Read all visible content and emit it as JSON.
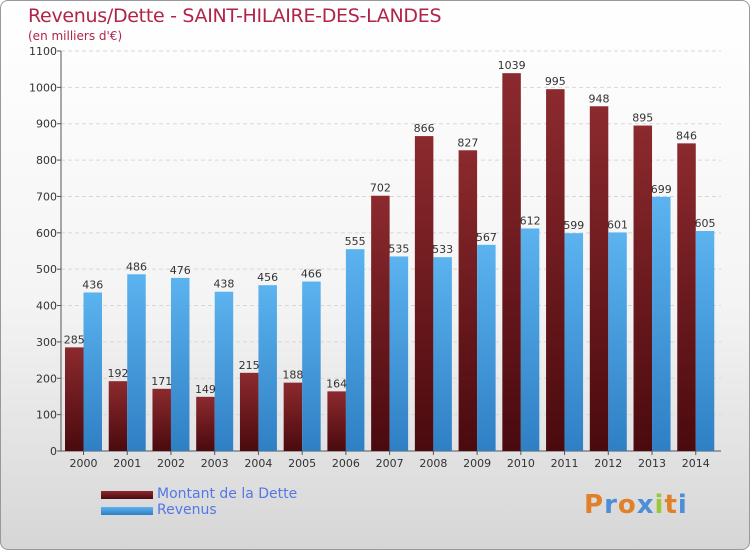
{
  "chart_data": {
    "type": "bar",
    "title": "Revenus/Dette - SAINT-HILAIRE-DES-LANDES",
    "subtitle": "(en milliers d'€)",
    "categories": [
      "2000",
      "2001",
      "2002",
      "2003",
      "2004",
      "2005",
      "2006",
      "2007",
      "2008",
      "2009",
      "2010",
      "2011",
      "2012",
      "2013",
      "2014"
    ],
    "series": [
      {
        "name": "Montant de la Dette",
        "color": "#7a1f24",
        "values": [
          285,
          192,
          171,
          149,
          215,
          188,
          164,
          702,
          866,
          827,
          1039,
          995,
          948,
          895,
          846
        ]
      },
      {
        "name": "Revenus",
        "color": "#4aa3e4",
        "values": [
          436,
          486,
          476,
          438,
          456,
          466,
          555,
          535,
          533,
          567,
          612,
          599,
          601,
          699,
          605
        ]
      }
    ],
    "ylim": [
      0,
      1100
    ],
    "yticks": [
      0,
      100,
      200,
      300,
      400,
      500,
      600,
      700,
      800,
      900,
      1000,
      1100
    ],
    "grid": true,
    "legend_position": "bottom-left"
  },
  "logo": {
    "letters": [
      "P",
      "r",
      "o",
      "x",
      "i",
      "t",
      "i"
    ],
    "colors": [
      "#e0802a",
      "#4c8ed8",
      "#e0802a",
      "#4c8ed8",
      "#9bc83a",
      "#e0802a",
      "#4c8ed8"
    ]
  }
}
